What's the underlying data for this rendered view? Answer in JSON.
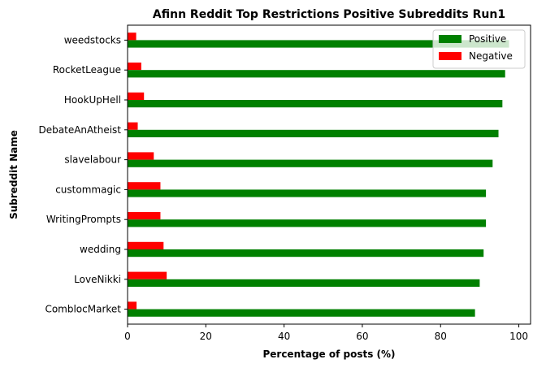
{
  "chart_data": {
    "type": "bar",
    "orientation": "horizontal",
    "title": "Afinn Reddit Top Restrictions Positive Subreddits Run1",
    "xlabel": "Percentage of posts (%)",
    "ylabel": "Subreddit Name",
    "xlim": [
      0,
      103
    ],
    "xticks": [
      0,
      20,
      40,
      60,
      80,
      100
    ],
    "categories": [
      "weedstocks",
      "RocketLeague",
      "HookUpHell",
      "DebateAnAtheist",
      "slavelabour",
      "custommagic",
      "WritingPrompts",
      "wedding",
      "LoveNikki",
      "ComblocMarket"
    ],
    "series": [
      {
        "name": "Positive",
        "color": "#008000",
        "values": [
          97.5,
          96.5,
          95.8,
          94.8,
          93.3,
          91.6,
          91.6,
          91.0,
          90.0,
          88.8
        ]
      },
      {
        "name": "Negative",
        "color": "#ff0000",
        "values": [
          2.2,
          3.5,
          4.2,
          2.6,
          6.7,
          8.4,
          8.4,
          9.2,
          10.0,
          2.3
        ]
      }
    ],
    "legend_position": "top-right",
    "grid": false
  }
}
